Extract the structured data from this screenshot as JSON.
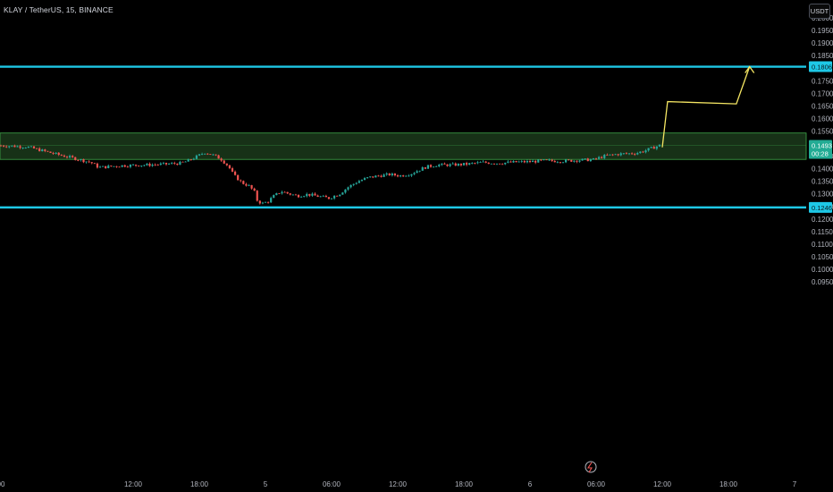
{
  "header": {
    "symbol_line": "KLAY / TetherUS, 15, BINANCE",
    "currency": "USDT"
  },
  "price_badge": {
    "price": "0.1493",
    "countdown": "00:28",
    "color": "#22ab94"
  },
  "colors": {
    "background": "#000000",
    "up": "#26a69a",
    "down": "#ef5350",
    "level_line": "#1ec8e6",
    "zone_fill": "#1b3a1b",
    "zone_border": "#3fa84a",
    "projection": "#f5e663"
  },
  "chart_data": {
    "type": "candlestick",
    "y_axis": {
      "ticks": [
        "0.2000",
        "0.1950",
        "0.1900",
        "0.1850",
        "0.1750",
        "0.1700",
        "0.1650",
        "0.1600",
        "0.1550",
        "0.1450",
        "0.1400",
        "0.1350",
        "0.1300",
        "0.1250",
        "0.1200",
        "0.1150",
        "0.1100",
        "0.1050",
        "0.1000",
        "0.0950"
      ],
      "range": [
        0.0935,
        0.2035
      ]
    },
    "x_axis": {
      "ticks": [
        {
          "label": "00",
          "pos": 0
        },
        {
          "label": "12:00",
          "pos": 0.5
        },
        {
          "label": "18:00",
          "pos": 0.75
        },
        {
          "label": "5",
          "pos": 1.0
        },
        {
          "label": "06:00",
          "pos": 1.25
        },
        {
          "label": "12:00",
          "pos": 1.5
        },
        {
          "label": "18:00",
          "pos": 1.75
        },
        {
          "label": "6",
          "pos": 2.0
        },
        {
          "label": "06:00",
          "pos": 2.25
        },
        {
          "label": "12:00",
          "pos": 2.5
        },
        {
          "label": "18:00",
          "pos": 2.75
        },
        {
          "label": "7",
          "pos": 3.0
        },
        {
          "label": "06:00",
          "pos": 3.25
        }
      ],
      "unit": "days from 4th 00:00"
    },
    "levels": [
      {
        "name": "resistance",
        "value": 0.1806,
        "label": "0.1806"
      },
      {
        "name": "support",
        "value": 0.1246,
        "label": "0.1246"
      }
    ],
    "zone": {
      "top": 0.1542,
      "bottom": 0.1437,
      "mid": 0.1493
    },
    "last_price": 0.1493,
    "projection_path": [
      [
        2.5,
        0.1485
      ],
      [
        2.52,
        0.1667
      ],
      [
        2.78,
        0.1658
      ],
      [
        2.83,
        0.1806
      ]
    ],
    "close_path": [
      [
        0.0,
        0.1492
      ],
      [
        0.1,
        0.1487
      ],
      [
        0.2,
        0.146
      ],
      [
        0.27,
        0.1443
      ],
      [
        0.34,
        0.1425
      ],
      [
        0.37,
        0.1405
      ],
      [
        0.45,
        0.1412
      ],
      [
        0.55,
        0.1415
      ],
      [
        0.62,
        0.1418
      ],
      [
        0.68,
        0.1422
      ],
      [
        0.71,
        0.1432
      ],
      [
        0.74,
        0.1448
      ],
      [
        0.77,
        0.1465
      ],
      [
        0.8,
        0.1455
      ],
      [
        0.83,
        0.144
      ],
      [
        0.86,
        0.141
      ],
      [
        0.88,
        0.1375
      ],
      [
        0.91,
        0.1345
      ],
      [
        0.94,
        0.133
      ],
      [
        0.96,
        0.1305
      ],
      [
        0.97,
        0.127
      ],
      [
        0.99,
        0.1262
      ],
      [
        1.01,
        0.127
      ],
      [
        1.03,
        0.129
      ],
      [
        1.06,
        0.131
      ],
      [
        1.09,
        0.13
      ],
      [
        1.12,
        0.1292
      ],
      [
        1.16,
        0.1298
      ],
      [
        1.2,
        0.129
      ],
      [
        1.24,
        0.1283
      ],
      [
        1.28,
        0.13
      ],
      [
        1.31,
        0.1325
      ],
      [
        1.35,
        0.135
      ],
      [
        1.39,
        0.1365
      ],
      [
        1.43,
        0.1372
      ],
      [
        1.47,
        0.1377
      ],
      [
        1.51,
        0.1372
      ],
      [
        1.55,
        0.138
      ],
      [
        1.58,
        0.1395
      ],
      [
        1.61,
        0.1408
      ],
      [
        1.65,
        0.1415
      ],
      [
        1.7,
        0.1415
      ],
      [
        1.76,
        0.1418
      ],
      [
        1.82,
        0.1425
      ],
      [
        1.88,
        0.1422
      ],
      [
        1.94,
        0.1426
      ],
      [
        2.0,
        0.1428
      ],
      [
        2.06,
        0.1432
      ],
      [
        2.12,
        0.143
      ],
      [
        2.18,
        0.1434
      ],
      [
        2.24,
        0.1436
      ],
      [
        2.28,
        0.145
      ],
      [
        2.33,
        0.1458
      ],
      [
        2.37,
        0.146
      ],
      [
        2.4,
        0.1462
      ],
      [
        2.43,
        0.147
      ],
      [
        2.46,
        0.1482
      ],
      [
        2.49,
        0.1493
      ]
    ],
    "series_count": 1
  }
}
